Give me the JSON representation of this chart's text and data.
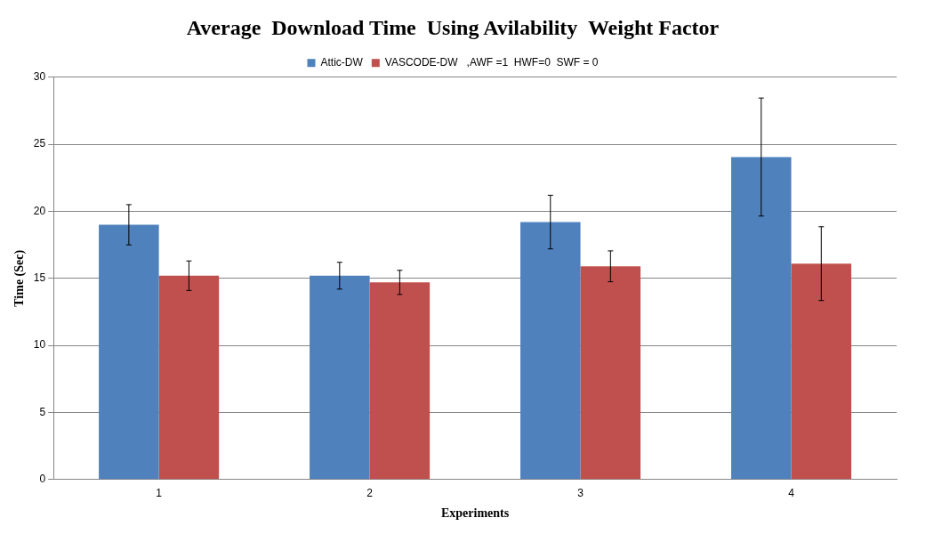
{
  "chart_data": {
    "type": "bar",
    "title": "Average  Download Time  Using Avilability  Weight Factor",
    "xlabel": "Experiments",
    "ylabel": "Time (Sec)",
    "categories": [
      "1",
      "2",
      "3",
      "4"
    ],
    "series": [
      {
        "name": "Attic-DW",
        "color": "#4f81bd",
        "values": [
          19.0,
          15.2,
          19.2,
          24.05
        ],
        "errors": [
          1.5,
          1.0,
          2.0,
          4.4
        ]
      },
      {
        "name": "VASCODE-DW   ,AWF =1  HWF=0  SWF = 0",
        "color": "#c0504d",
        "values": [
          15.2,
          14.7,
          15.9,
          16.1
        ],
        "errors": [
          1.1,
          0.9,
          1.15,
          2.75
        ]
      }
    ],
    "ylim": [
      0,
      30
    ],
    "yticks": [
      0,
      5,
      10,
      15,
      20,
      25,
      30
    ],
    "grid": "y",
    "legend": "top"
  }
}
